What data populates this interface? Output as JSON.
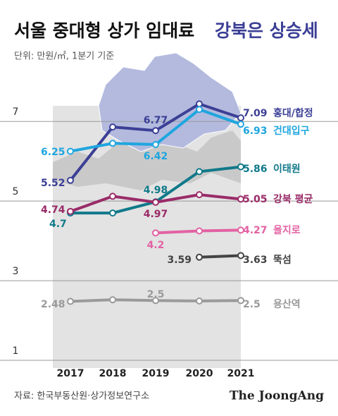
{
  "chart_data": {
    "type": "line",
    "title": "서울 중대형 상가 임대료",
    "subtitle": "강북은 상승세",
    "unit_note": "단위: 만원/㎡, 1분기 기준",
    "source": "자료: 한국부동산원·상가정보연구소",
    "credit": "The JoongAng",
    "categories": [
      "2017",
      "2018",
      "2019",
      "2020",
      "2021"
    ],
    "ylim": [
      1,
      7.5
    ],
    "yticks": [
      1,
      3,
      5,
      7
    ],
    "grid": true,
    "series": [
      {
        "name": "홍대/합정",
        "color": "#3b3f95",
        "values": [
          5.52,
          6.86,
          6.77,
          7.44,
          7.09
        ]
      },
      {
        "name": "건대입구",
        "color": "#1fa6df",
        "values": [
          6.25,
          6.45,
          6.42,
          7.3,
          6.93
        ]
      },
      {
        "name": "이태원",
        "color": "#10798a",
        "values": [
          4.7,
          4.7,
          4.98,
          5.74,
          5.86
        ]
      },
      {
        "name": "강북 평균",
        "color": "#9a2b68",
        "values": [
          4.74,
          5.12,
          4.97,
          5.16,
          5.05
        ]
      },
      {
        "name": "을지로",
        "color": "#e262a3",
        "values": [
          null,
          null,
          4.2,
          4.25,
          4.27
        ]
      },
      {
        "name": "뚝섬",
        "color": "#444444",
        "values": [
          null,
          null,
          null,
          3.59,
          3.63
        ]
      },
      {
        "name": "용산역",
        "color": "#9a9a9a",
        "values": [
          2.48,
          2.52,
          2.5,
          2.49,
          2.5
        ]
      }
    ]
  }
}
